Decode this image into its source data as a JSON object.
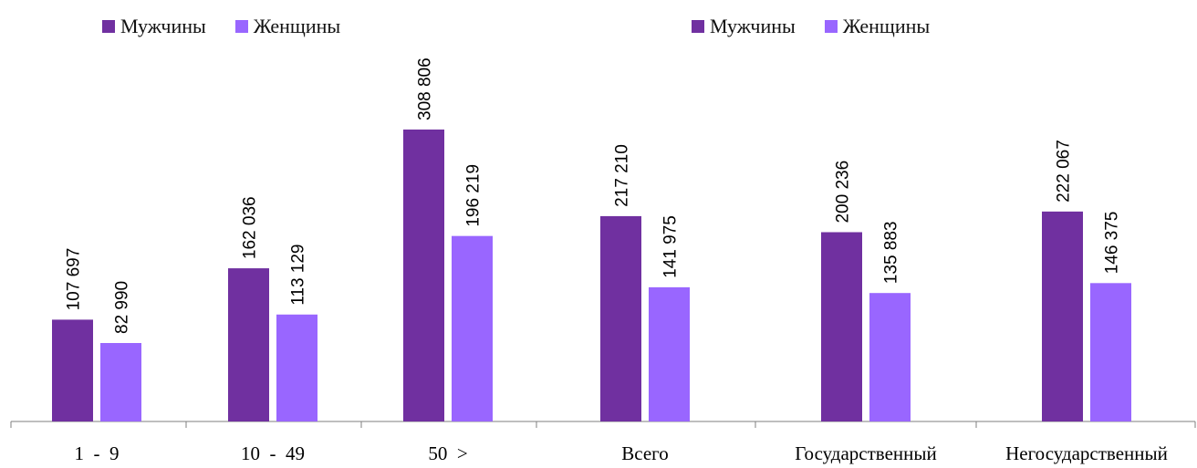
{
  "colors": {
    "men": "#7030a0",
    "women": "#9966ff",
    "axis": "#7f7f7f"
  },
  "chart_data": [
    {
      "type": "bar",
      "categories": [
        "1  -  9",
        "10  -  49",
        "50  >"
      ],
      "series": [
        {
          "name": "Мужчины",
          "values": [
            107697,
            162036,
            308806
          ],
          "labels": [
            "107 697",
            "162 036",
            "308 806"
          ]
        },
        {
          "name": "Женщины",
          "values": [
            82990,
            113129,
            196219
          ],
          "labels": [
            "82 990",
            "113 129",
            "196 219"
          ]
        }
      ],
      "ylim": [
        0,
        330000
      ],
      "legend": "top-left"
    },
    {
      "type": "bar",
      "categories": [
        "Всего",
        "Государственный",
        "Негосударственный"
      ],
      "series": [
        {
          "name": "Мужчины",
          "values": [
            217210,
            200236,
            222067
          ],
          "labels": [
            "217 210",
            "200 236",
            "222 067"
          ]
        },
        {
          "name": "Женщины",
          "values": [
            141975,
            135883,
            146375
          ],
          "labels": [
            "141 975",
            "135 883",
            "146 375"
          ]
        }
      ],
      "ylim": [
        0,
        330000
      ],
      "legend": "top-left"
    }
  ]
}
